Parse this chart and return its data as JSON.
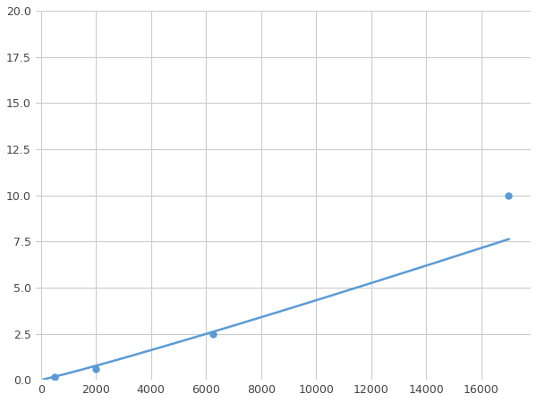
{
  "x_points": [
    200,
    500,
    750,
    2000,
    6250,
    17000
  ],
  "y_points": [
    0.1,
    0.15,
    0.2,
    0.6,
    2.5,
    10.0
  ],
  "line_color": "#5B9BD5",
  "marker_color": "#5B9BD5",
  "marker_size": 6,
  "line_width": 1.8,
  "xlim": [
    -200,
    17800
  ],
  "ylim": [
    0,
    20.0
  ],
  "xticks": [
    0,
    2000,
    4000,
    6000,
    8000,
    10000,
    12000,
    14000,
    16000
  ],
  "yticks": [
    0.0,
    2.5,
    5.0,
    7.5,
    10.0,
    12.5,
    15.0,
    17.5,
    20.0
  ],
  "grid_color": "#CCCCCC",
  "background_color": "#FFFFFF",
  "figsize": [
    6.0,
    4.5
  ],
  "dpi": 100
}
